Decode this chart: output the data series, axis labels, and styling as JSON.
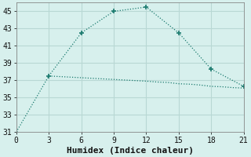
{
  "xlabel": "Humidex (Indice chaleur)",
  "background_color": "#d7f0ed",
  "grid_color": "#b8d8d4",
  "line_color": "#1a7a6e",
  "series1_x": [
    0,
    3,
    6,
    9,
    12,
    15,
    18,
    21
  ],
  "series1_y": [
    31,
    37.5,
    42.5,
    45,
    45.5,
    42.5,
    38.3,
    36.3
  ],
  "series2_x": [
    3,
    6,
    9,
    12,
    13,
    14,
    15,
    16,
    17,
    18,
    19,
    20,
    21
  ],
  "series2_y": [
    37.5,
    37.3,
    37.1,
    36.9,
    36.8,
    36.75,
    36.6,
    36.55,
    36.45,
    36.3,
    36.25,
    36.15,
    36.1
  ],
  "xlim": [
    0,
    21
  ],
  "ylim": [
    31,
    46
  ],
  "xticks": [
    0,
    3,
    6,
    9,
    12,
    15,
    18,
    21
  ],
  "yticks": [
    31,
    33,
    35,
    37,
    39,
    41,
    43,
    45
  ],
  "font_family": "monospace",
  "tick_fontsize": 7,
  "xlabel_fontsize": 8
}
